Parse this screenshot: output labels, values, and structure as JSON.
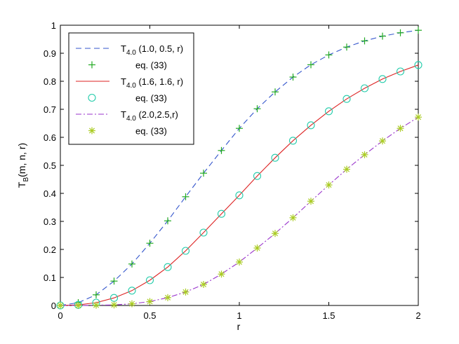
{
  "chart_data": {
    "type": "line",
    "title": "",
    "xlabel": "r",
    "ylabel_main": "T",
    "ylabel_sub": "B",
    "ylabel_rest": "(m, n, r)",
    "xlim": [
      0,
      2
    ],
    "ylim": [
      0,
      1
    ],
    "xticks": [
      0,
      0.5,
      1,
      1.5,
      2
    ],
    "xtick_labels": [
      "0",
      "0.5",
      "1",
      "1.5",
      "2"
    ],
    "yticks": [
      0,
      0.1,
      0.2,
      0.3,
      0.4,
      0.5,
      0.6,
      0.7,
      0.8,
      0.9,
      1
    ],
    "ytick_labels": [
      "0",
      "0.1",
      "0.2",
      "0.3",
      "0.4",
      "0.5",
      "0.6",
      "0.7",
      "0.8",
      "0.9",
      "1"
    ],
    "grid": false,
    "legend_position": "top-left",
    "series": [
      {
        "name_main": "T",
        "name_sub": "4.0",
        "name_rest": " (1.0, 0.5, r)",
        "style": "dashed",
        "color": "#3355cc",
        "x": [
          0,
          0.1,
          0.2,
          0.3,
          0.4,
          0.5,
          0.6,
          0.7,
          0.8,
          0.9,
          1.0,
          1.1,
          1.2,
          1.3,
          1.4,
          1.5,
          1.6,
          1.7,
          1.8,
          1.9,
          2.0
        ],
        "y": [
          0.0,
          0.01,
          0.038,
          0.087,
          0.148,
          0.222,
          0.302,
          0.388,
          0.472,
          0.553,
          0.632,
          0.702,
          0.762,
          0.815,
          0.859,
          0.894,
          0.922,
          0.944,
          0.961,
          0.973,
          0.982
        ]
      },
      {
        "name_main": "eq. (33)",
        "name_sub": "",
        "name_rest": "",
        "style": "marker-plus",
        "color": "#22aa22",
        "x": [
          0,
          0.1,
          0.2,
          0.3,
          0.4,
          0.5,
          0.6,
          0.7,
          0.8,
          0.9,
          1.0,
          1.1,
          1.2,
          1.3,
          1.4,
          1.5,
          1.6,
          1.7,
          1.8,
          1.9,
          2.0
        ],
        "y": [
          0.0,
          0.01,
          0.038,
          0.087,
          0.148,
          0.222,
          0.302,
          0.388,
          0.472,
          0.553,
          0.632,
          0.702,
          0.762,
          0.815,
          0.859,
          0.894,
          0.922,
          0.944,
          0.961,
          0.973,
          0.982
        ]
      },
      {
        "name_main": "T",
        "name_sub": "4.0",
        "name_rest": " (1.6, 1.6, r)",
        "style": "solid",
        "color": "#dd2222",
        "x": [
          0,
          0.1,
          0.2,
          0.3,
          0.4,
          0.5,
          0.6,
          0.7,
          0.8,
          0.9,
          1.0,
          1.1,
          1.2,
          1.3,
          1.4,
          1.5,
          1.6,
          1.7,
          1.8,
          1.9,
          2.0
        ],
        "y": [
          0.0,
          0.002,
          0.01,
          0.027,
          0.053,
          0.09,
          0.137,
          0.195,
          0.26,
          0.327,
          0.393,
          0.462,
          0.527,
          0.588,
          0.643,
          0.693,
          0.737,
          0.775,
          0.808,
          0.835,
          0.858
        ]
      },
      {
        "name_main": "eq. (33)",
        "name_sub": "",
        "name_rest": "",
        "style": "marker-circle",
        "color": "#22ccaa",
        "x": [
          0,
          0.1,
          0.2,
          0.3,
          0.4,
          0.5,
          0.6,
          0.7,
          0.8,
          0.9,
          1.0,
          1.1,
          1.2,
          1.3,
          1.4,
          1.5,
          1.6,
          1.7,
          1.8,
          1.9,
          2.0
        ],
        "y": [
          0.0,
          0.002,
          0.01,
          0.027,
          0.053,
          0.09,
          0.137,
          0.195,
          0.26,
          0.327,
          0.393,
          0.462,
          0.527,
          0.588,
          0.643,
          0.693,
          0.737,
          0.775,
          0.808,
          0.835,
          0.858
        ]
      },
      {
        "name_main": "T",
        "name_sub": "4.0",
        "name_rest": " (2.0,2.5,r)",
        "style": "dashdot",
        "color": "#9933cc",
        "x": [
          0,
          0.1,
          0.2,
          0.3,
          0.4,
          0.5,
          0.6,
          0.7,
          0.8,
          0.9,
          1.0,
          1.1,
          1.2,
          1.3,
          1.4,
          1.5,
          1.6,
          1.7,
          1.8,
          1.9,
          2.0
        ],
        "y": [
          0.0,
          0.0,
          0.001,
          0.002,
          0.006,
          0.014,
          0.028,
          0.048,
          0.075,
          0.112,
          0.155,
          0.205,
          0.257,
          0.313,
          0.372,
          0.43,
          0.486,
          0.538,
          0.587,
          0.632,
          0.672
        ]
      },
      {
        "name_main": "eq. (33)",
        "name_sub": "",
        "name_rest": "",
        "style": "marker-star",
        "color": "#aacc22",
        "x": [
          0,
          0.1,
          0.2,
          0.3,
          0.4,
          0.5,
          0.6,
          0.7,
          0.8,
          0.9,
          1.0,
          1.1,
          1.2,
          1.3,
          1.4,
          1.5,
          1.6,
          1.7,
          1.8,
          1.9,
          2.0
        ],
        "y": [
          0.0,
          0.0,
          0.001,
          0.002,
          0.006,
          0.014,
          0.028,
          0.048,
          0.075,
          0.112,
          0.155,
          0.205,
          0.257,
          0.313,
          0.372,
          0.43,
          0.486,
          0.538,
          0.587,
          0.632,
          0.672
        ]
      }
    ]
  }
}
